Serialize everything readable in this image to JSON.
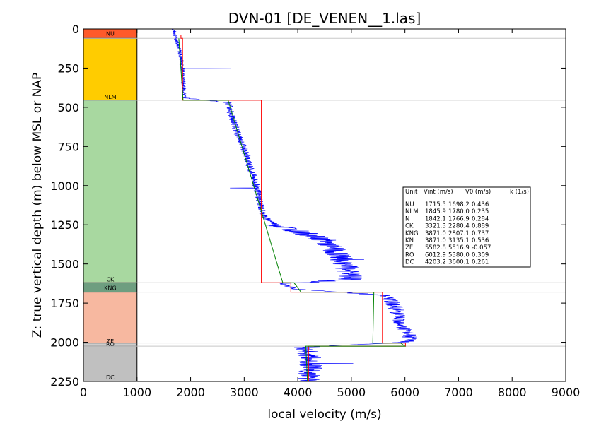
{
  "chart_data": {
    "type": "line",
    "title": "DVN-01 [DE_VENEN__1.las]",
    "xlabel": "local velocity (m/s)",
    "ylabel": "Z: true vertical depth (m) below MSL or NAP",
    "xlim": [
      0,
      9000
    ],
    "ylim": [
      2250,
      0
    ],
    "y_inverted": true,
    "x_ticks": [
      "0",
      "1000",
      "2000",
      "3000",
      "4000",
      "5000",
      "6000",
      "7000",
      "8000",
      "9000"
    ],
    "y_ticks": [
      "0",
      "250",
      "500",
      "750",
      "1000",
      "1250",
      "1500",
      "1750",
      "2000",
      "2250"
    ],
    "units": [
      {
        "name": "NU",
        "top": 0,
        "base": 60,
        "color": "#ff5a2a",
        "vint": "1715.5",
        "v0": "1698.2",
        "k": "0.436"
      },
      {
        "name": "NLM",
        "top": 60,
        "base": 455,
        "color": "#ffcc00",
        "vint": "1845.9",
        "v0": "1780.0",
        "k": "0.235"
      },
      {
        "name": "N",
        "top": 455,
        "base": 455,
        "color": "#a8d8a0",
        "vint": "1842.1",
        "v0": "1766.9",
        "k": "0.284"
      },
      {
        "name": "CK",
        "top": 455,
        "base": 1620,
        "color": "#a8d8a0",
        "vint": "3321.3",
        "v0": "2280.4",
        "k": "0.889"
      },
      {
        "name": "KNG",
        "top": 1620,
        "base": 1680,
        "color": "#6e9e80",
        "vint": "3871.0",
        "v0": "2807.1",
        "k": "0.737"
      },
      {
        "name": "KN",
        "top": 1680,
        "base": 1680,
        "color": "#6e9e80",
        "vint": "3871.0",
        "v0": "3135.1",
        "k": "0.536"
      },
      {
        "name": "ZE",
        "top": 1680,
        "base": 2005,
        "color": "#f7b8a0",
        "vint": "5582.8",
        "v0": "5516.9",
        "k": "-0.057"
      },
      {
        "name": "RO",
        "top": 2005,
        "base": 2025,
        "color": "#cccccc",
        "vint": "6012.9",
        "v0": "5380.0",
        "k": "0.309"
      },
      {
        "name": "DC",
        "top": 2025,
        "base": 2250,
        "color": "#c0c0c0",
        "vint": "4203.2",
        "v0": "3600.1",
        "k": "0.261"
      }
    ],
    "column_labels": [
      {
        "text": "NU",
        "depth": 30
      },
      {
        "text": "NLM",
        "depth": 432
      },
      {
        "text": "CK",
        "depth": 1598
      },
      {
        "text": "KNG",
        "depth": 1652
      },
      {
        "text": "ZE",
        "depth": 1992
      },
      {
        "text": "RO",
        "depth": 2010
      },
      {
        "text": "DC",
        "depth": 2222
      }
    ],
    "boundaries": [
      60,
      455,
      1620,
      1680,
      2005,
      2025
    ],
    "legend": {
      "header": [
        "Unit",
        "Vint (m/s)",
        "V0 (m/s)",
        "k (1/s)"
      ],
      "placement": "right"
    },
    "series": [
      {
        "color": "#0000ff",
        "profile": [
          [
            0,
            1680
          ],
          [
            30,
            1710
          ],
          [
            60,
            1720
          ],
          [
            100,
            1770
          ],
          [
            150,
            1800
          ],
          [
            200,
            1830
          ],
          [
            250,
            1850
          ],
          [
            300,
            1860
          ],
          [
            350,
            1870
          ],
          [
            400,
            1880
          ],
          [
            440,
            1880
          ],
          [
            470,
            2700
          ],
          [
            550,
            2760
          ],
          [
            650,
            2860
          ],
          [
            750,
            2990
          ],
          [
            850,
            3080
          ],
          [
            950,
            3180
          ],
          [
            1050,
            3260
          ],
          [
            1150,
            3320
          ],
          [
            1200,
            3380
          ],
          [
            1250,
            3600
          ],
          [
            1300,
            4100
          ],
          [
            1350,
            4500
          ],
          [
            1400,
            4650
          ],
          [
            1450,
            4780
          ],
          [
            1500,
            4880
          ],
          [
            1550,
            4950
          ],
          [
            1600,
            4990
          ],
          [
            1625,
            3700
          ],
          [
            1660,
            3950
          ],
          [
            1700,
            5600
          ],
          [
            1750,
            5780
          ],
          [
            1800,
            5850
          ],
          [
            1850,
            5900
          ],
          [
            1900,
            5950
          ],
          [
            1950,
            6080
          ],
          [
            2000,
            6050
          ],
          [
            2030,
            4100
          ],
          [
            2080,
            4200
          ],
          [
            2130,
            4250
          ],
          [
            2180,
            4230
          ],
          [
            2230,
            4210
          ],
          [
            2250,
            4200
          ]
        ]
      },
      {
        "color": "#ff0000",
        "path": [
          [
            40,
            1820
          ],
          [
            60,
            1820
          ],
          [
            60,
            1850
          ],
          [
            455,
            1850
          ],
          [
            455,
            3320
          ],
          [
            1620,
            3320
          ],
          [
            1620,
            3870
          ],
          [
            1680,
            3870
          ],
          [
            1680,
            5580
          ],
          [
            2005,
            5580
          ],
          [
            2005,
            6010
          ],
          [
            2025,
            6010
          ],
          [
            2025,
            4200
          ],
          [
            2250,
            4200
          ]
        ]
      },
      {
        "color": "#008000",
        "path": [
          [
            60,
            1780
          ],
          [
            455,
            1860
          ],
          [
            455,
            2700
          ],
          [
            1620,
            3720
          ],
          [
            1620,
            3930
          ],
          [
            1680,
            4060
          ],
          [
            1680,
            5420
          ],
          [
            2005,
            5400
          ],
          [
            2005,
            5920
          ],
          [
            2025,
            6000
          ],
          [
            2025,
            4150
          ],
          [
            2250,
            4180
          ]
        ]
      }
    ]
  }
}
